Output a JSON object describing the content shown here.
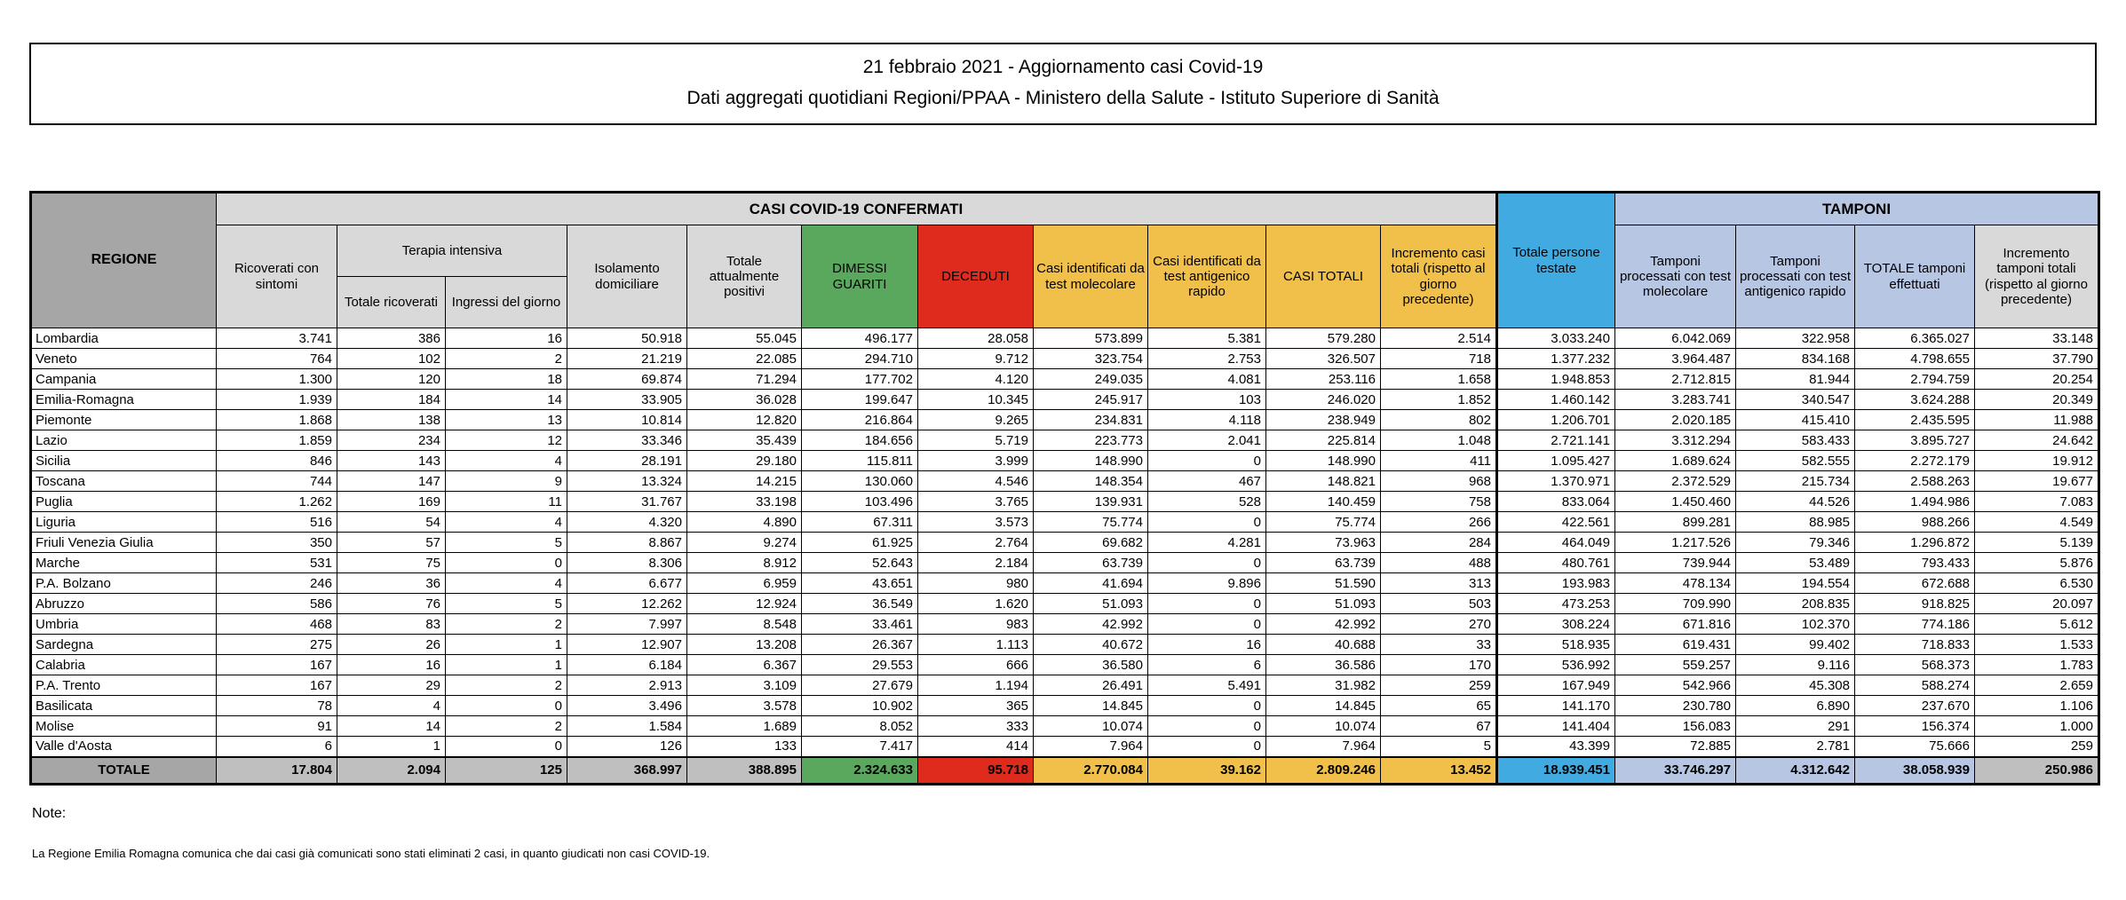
{
  "title": {
    "line1": "21 febbraio 2021 - Aggiornamento casi Covid-19",
    "line2": "Dati aggregati quotidiani Regioni/PPAA - Ministero della Salute - Istituto Superiore di Sanità"
  },
  "colors": {
    "header_gray": "#D9D9D9",
    "region_gray": "#A6A6A6",
    "total_gray": "#BFBFBF",
    "green": "#5AA85E",
    "red": "#DF2B1E",
    "yellow": "#F0C04A",
    "cyan": "#41ABE1",
    "periwinkle": "#B6C6E3"
  },
  "table": {
    "region_header": "REGIONE",
    "groups": {
      "casi": "CASI COVID-19 CONFERMATI",
      "terapia": "Terapia intensiva",
      "tamponi": "TAMPONI"
    },
    "col_labels": {
      "ricoverati": "Ricoverati con sintomi",
      "terapia_totale": "Totale ricoverati",
      "terapia_ingressi": "Ingressi del giorno",
      "isolamento": "Isolamento domiciliare",
      "positivi": "Totale attualmente positivi",
      "dimessi": "DIMESSI GUARITI",
      "deceduti": "DECEDUTI",
      "casi_molecolare": "Casi identificati da test molecolare",
      "casi_antigenico": "Casi identificati da test antigenico rapido",
      "casi_totali": "CASI TOTALI",
      "incremento_casi": "Incremento casi totali (rispetto al giorno precedente)",
      "persone_testate": "Totale persone testate",
      "tamponi_molecolare": "Tamponi processati con test molecolare",
      "tamponi_antigenico": "Tamponi processati con test antigenico rapido",
      "tamponi_totale": "TOTALE tamponi effettuati",
      "incremento_tamponi": "Incremento tamponi totali (rispetto al giorno precedente)"
    },
    "rows": [
      {
        "region": "Lombardia",
        "values": [
          "3.741",
          "386",
          "16",
          "50.918",
          "55.045",
          "496.177",
          "28.058",
          "573.899",
          "5.381",
          "579.280",
          "2.514",
          "3.033.240",
          "6.042.069",
          "322.958",
          "6.365.027",
          "33.148"
        ]
      },
      {
        "region": "Veneto",
        "values": [
          "764",
          "102",
          "2",
          "21.219",
          "22.085",
          "294.710",
          "9.712",
          "323.754",
          "2.753",
          "326.507",
          "718",
          "1.377.232",
          "3.964.487",
          "834.168",
          "4.798.655",
          "37.790"
        ]
      },
      {
        "region": "Campania",
        "values": [
          "1.300",
          "120",
          "18",
          "69.874",
          "71.294",
          "177.702",
          "4.120",
          "249.035",
          "4.081",
          "253.116",
          "1.658",
          "1.948.853",
          "2.712.815",
          "81.944",
          "2.794.759",
          "20.254"
        ]
      },
      {
        "region": "Emilia-Romagna",
        "values": [
          "1.939",
          "184",
          "14",
          "33.905",
          "36.028",
          "199.647",
          "10.345",
          "245.917",
          "103",
          "246.020",
          "1.852",
          "1.460.142",
          "3.283.741",
          "340.547",
          "3.624.288",
          "20.349"
        ]
      },
      {
        "region": "Piemonte",
        "values": [
          "1.868",
          "138",
          "13",
          "10.814",
          "12.820",
          "216.864",
          "9.265",
          "234.831",
          "4.118",
          "238.949",
          "802",
          "1.206.701",
          "2.020.185",
          "415.410",
          "2.435.595",
          "11.988"
        ]
      },
      {
        "region": "Lazio",
        "values": [
          "1.859",
          "234",
          "12",
          "33.346",
          "35.439",
          "184.656",
          "5.719",
          "223.773",
          "2.041",
          "225.814",
          "1.048",
          "2.721.141",
          "3.312.294",
          "583.433",
          "3.895.727",
          "24.642"
        ]
      },
      {
        "region": "Sicilia",
        "values": [
          "846",
          "143",
          "4",
          "28.191",
          "29.180",
          "115.811",
          "3.999",
          "148.990",
          "0",
          "148.990",
          "411",
          "1.095.427",
          "1.689.624",
          "582.555",
          "2.272.179",
          "19.912"
        ]
      },
      {
        "region": "Toscana",
        "values": [
          "744",
          "147",
          "9",
          "13.324",
          "14.215",
          "130.060",
          "4.546",
          "148.354",
          "467",
          "148.821",
          "968",
          "1.370.971",
          "2.372.529",
          "215.734",
          "2.588.263",
          "19.677"
        ]
      },
      {
        "region": "Puglia",
        "values": [
          "1.262",
          "169",
          "11",
          "31.767",
          "33.198",
          "103.496",
          "3.765",
          "139.931",
          "528",
          "140.459",
          "758",
          "833.064",
          "1.450.460",
          "44.526",
          "1.494.986",
          "7.083"
        ]
      },
      {
        "region": "Liguria",
        "values": [
          "516",
          "54",
          "4",
          "4.320",
          "4.890",
          "67.311",
          "3.573",
          "75.774",
          "0",
          "75.774",
          "266",
          "422.561",
          "899.281",
          "88.985",
          "988.266",
          "4.549"
        ]
      },
      {
        "region": "Friuli Venezia Giulia",
        "values": [
          "350",
          "57",
          "5",
          "8.867",
          "9.274",
          "61.925",
          "2.764",
          "69.682",
          "4.281",
          "73.963",
          "284",
          "464.049",
          "1.217.526",
          "79.346",
          "1.296.872",
          "5.139"
        ]
      },
      {
        "region": "Marche",
        "values": [
          "531",
          "75",
          "0",
          "8.306",
          "8.912",
          "52.643",
          "2.184",
          "63.739",
          "0",
          "63.739",
          "488",
          "480.761",
          "739.944",
          "53.489",
          "793.433",
          "5.876"
        ]
      },
      {
        "region": "P.A. Bolzano",
        "values": [
          "246",
          "36",
          "4",
          "6.677",
          "6.959",
          "43.651",
          "980",
          "41.694",
          "9.896",
          "51.590",
          "313",
          "193.983",
          "478.134",
          "194.554",
          "672.688",
          "6.530"
        ]
      },
      {
        "region": "Abruzzo",
        "values": [
          "586",
          "76",
          "5",
          "12.262",
          "12.924",
          "36.549",
          "1.620",
          "51.093",
          "0",
          "51.093",
          "503",
          "473.253",
          "709.990",
          "208.835",
          "918.825",
          "20.097"
        ]
      },
      {
        "region": "Umbria",
        "values": [
          "468",
          "83",
          "2",
          "7.997",
          "8.548",
          "33.461",
          "983",
          "42.992",
          "0",
          "42.992",
          "270",
          "308.224",
          "671.816",
          "102.370",
          "774.186",
          "5.612"
        ]
      },
      {
        "region": "Sardegna",
        "values": [
          "275",
          "26",
          "1",
          "12.907",
          "13.208",
          "26.367",
          "1.113",
          "40.672",
          "16",
          "40.688",
          "33",
          "518.935",
          "619.431",
          "99.402",
          "718.833",
          "1.533"
        ]
      },
      {
        "region": "Calabria",
        "values": [
          "167",
          "16",
          "1",
          "6.184",
          "6.367",
          "29.553",
          "666",
          "36.580",
          "6",
          "36.586",
          "170",
          "536.992",
          "559.257",
          "9.116",
          "568.373",
          "1.783"
        ]
      },
      {
        "region": "P.A. Trento",
        "values": [
          "167",
          "29",
          "2",
          "2.913",
          "3.109",
          "27.679",
          "1.194",
          "26.491",
          "5.491",
          "31.982",
          "259",
          "167.949",
          "542.966",
          "45.308",
          "588.274",
          "2.659"
        ]
      },
      {
        "region": "Basilicata",
        "values": [
          "78",
          "4",
          "0",
          "3.496",
          "3.578",
          "10.902",
          "365",
          "14.845",
          "0",
          "14.845",
          "65",
          "141.170",
          "230.780",
          "6.890",
          "237.670",
          "1.106"
        ]
      },
      {
        "region": "Molise",
        "values": [
          "91",
          "14",
          "2",
          "1.584",
          "1.689",
          "8.052",
          "333",
          "10.074",
          "0",
          "10.074",
          "67",
          "141.404",
          "156.083",
          "291",
          "156.374",
          "1.000"
        ]
      },
      {
        "region": "Valle d'Aosta",
        "values": [
          "6",
          "1",
          "0",
          "126",
          "133",
          "7.417",
          "414",
          "7.964",
          "0",
          "7.964",
          "5",
          "43.399",
          "72.885",
          "2.781",
          "75.666",
          "259"
        ]
      }
    ],
    "total": {
      "label": "TOTALE",
      "values": [
        "17.804",
        "2.094",
        "125",
        "368.997",
        "388.895",
        "2.324.633",
        "95.718",
        "2.770.084",
        "39.162",
        "2.809.246",
        "13.452",
        "18.939.451",
        "33.746.297",
        "4.312.642",
        "38.058.939",
        "250.986"
      ]
    }
  },
  "notes": {
    "heading": "Note:",
    "line1": "La Regione Emilia Romagna comunica che dai casi già comunicati sono stati eliminati 2 casi,  in quanto giudicati non casi COVID-19."
  }
}
